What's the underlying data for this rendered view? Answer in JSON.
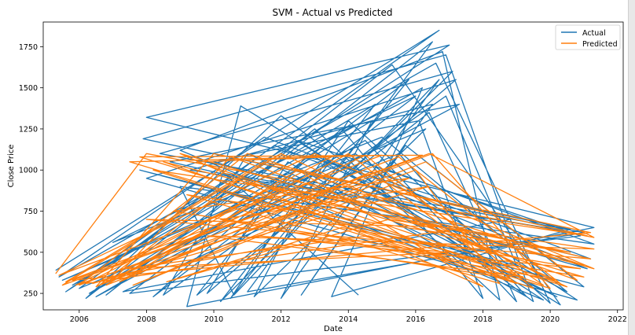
{
  "chart_data": {
    "type": "line",
    "title": "SVM - Actual vs Predicted",
    "xlabel": "Date",
    "ylabel": "Close Price",
    "xlim": [
      2004.93,
      2022.17
    ],
    "ylim": [
      150,
      1900
    ],
    "xticks": [
      "2006",
      "2008",
      "2010",
      "2012",
      "2014",
      "2016",
      "2018",
      "2020",
      "2022"
    ],
    "yticks": [
      "250",
      "500",
      "750",
      "1000",
      "1250",
      "1500",
      "1750"
    ],
    "grid": false,
    "legend_position": "top-right",
    "series": [
      {
        "name": "Actual",
        "color": "#1f77b4",
        "points": [
          [
            2005.3,
            390
          ],
          [
            2016.7,
            1850
          ],
          [
            2005.6,
            260
          ],
          [
            2017.0,
            1760
          ],
          [
            2008.0,
            1320
          ],
          [
            2021.3,
            650
          ],
          [
            2009.2,
            170
          ],
          [
            2010.8,
            1390
          ],
          [
            2020.3,
            180
          ],
          [
            2015.3,
            1640
          ],
          [
            2006.2,
            220
          ],
          [
            2012.0,
            1330
          ],
          [
            2019.5,
            200
          ],
          [
            2016.9,
            1700
          ],
          [
            2007.9,
            1190
          ],
          [
            2020.6,
            640
          ],
          [
            2013.5,
            230
          ],
          [
            2016.2,
            1500
          ],
          [
            2005.8,
            300
          ],
          [
            2014.8,
            1400
          ],
          [
            2010.2,
            200
          ],
          [
            2017.1,
            1600
          ],
          [
            2008.4,
            1100
          ],
          [
            2021.0,
            620
          ],
          [
            2011.0,
            260
          ],
          [
            2016.5,
            1780
          ],
          [
            2006.8,
            240
          ],
          [
            2013.0,
            1250
          ],
          [
            2018.5,
            210
          ],
          [
            2016.8,
            1720
          ],
          [
            2009.0,
            1120
          ],
          [
            2019.8,
            210
          ],
          [
            2012.5,
            1180
          ],
          [
            2020.9,
            600
          ],
          [
            2007.5,
            250
          ],
          [
            2015.8,
            1550
          ],
          [
            2010.5,
            220
          ],
          [
            2014.0,
            1300
          ],
          [
            2020.0,
            190
          ],
          [
            2016.6,
            1650
          ],
          [
            2005.4,
            350
          ],
          [
            2011.5,
            1200
          ],
          [
            2021.2,
            460
          ],
          [
            2008.7,
            1050
          ],
          [
            2017.3,
            1400
          ],
          [
            2006.5,
            230
          ],
          [
            2014.5,
            1180
          ],
          [
            2019.0,
            200
          ],
          [
            2016.4,
            1350
          ],
          [
            2009.5,
            240
          ],
          [
            2012.8,
            1100
          ],
          [
            2020.5,
            260
          ],
          [
            2015.0,
            1200
          ],
          [
            2007.0,
            560
          ],
          [
            2016.0,
            1450
          ],
          [
            2008.2,
            230
          ],
          [
            2013.8,
            1250
          ],
          [
            2018.0,
            220
          ],
          [
            2016.1,
            1300
          ],
          [
            2010.0,
            1050
          ],
          [
            2021.1,
            400
          ],
          [
            2011.8,
            1150
          ],
          [
            2006.0,
            280
          ],
          [
            2015.5,
            1100
          ],
          [
            2019.3,
            230
          ],
          [
            2012.2,
            1050
          ],
          [
            2009.8,
            250
          ],
          [
            2017.2,
            1550
          ],
          [
            2008.0,
            950
          ],
          [
            2020.8,
            210
          ],
          [
            2014.2,
            1100
          ],
          [
            2005.5,
            330
          ],
          [
            2016.3,
            1250
          ],
          [
            2011.2,
            230
          ],
          [
            2013.3,
            1050
          ],
          [
            2018.8,
            700
          ],
          [
            2007.3,
            260
          ],
          [
            2015.2,
            1000
          ],
          [
            2021.3,
            550
          ],
          [
            2009.0,
            900
          ],
          [
            2010.6,
            240
          ],
          [
            2016.7,
            1550
          ],
          [
            2012.0,
            220
          ],
          [
            2014.7,
            1300
          ],
          [
            2006.3,
            250
          ],
          [
            2013.0,
            980
          ],
          [
            2020.2,
            230
          ],
          [
            2011.0,
            1100
          ],
          [
            2008.5,
            240
          ],
          [
            2016.9,
            1450
          ],
          [
            2019.0,
            420
          ],
          [
            2007.8,
            1000
          ],
          [
            2021.0,
            290
          ],
          [
            2015.7,
            1150
          ],
          [
            2012.6,
            240
          ],
          [
            2016.5,
            1400
          ],
          [
            2009.3,
            1000
          ],
          [
            2020.7,
            620
          ],
          [
            2010.3,
            980
          ],
          [
            2014.3,
            240
          ]
        ]
      },
      {
        "name": "Predicted",
        "color": "#ff7f0e",
        "points": [
          [
            2005.3,
            370
          ],
          [
            2008.0,
            1100
          ],
          [
            2021.3,
            590
          ],
          [
            2016.4,
            1100
          ],
          [
            2005.5,
            300
          ],
          [
            2012.0,
            1100
          ],
          [
            2020.5,
            290
          ],
          [
            2007.8,
            1080
          ],
          [
            2016.2,
            1090
          ],
          [
            2005.8,
            330
          ],
          [
            2021.2,
            620
          ],
          [
            2010.0,
            1100
          ],
          [
            2006.5,
            290
          ],
          [
            2014.5,
            1090
          ],
          [
            2019.5,
            280
          ],
          [
            2008.5,
            1050
          ],
          [
            2021.0,
            420
          ],
          [
            2011.0,
            1100
          ],
          [
            2006.0,
            300
          ],
          [
            2016.5,
            1100
          ],
          [
            2020.0,
            280
          ],
          [
            2007.5,
            1050
          ],
          [
            2015.0,
            1090
          ],
          [
            2005.4,
            360
          ],
          [
            2013.0,
            1100
          ],
          [
            2021.3,
            400
          ],
          [
            2009.0,
            1100
          ],
          [
            2018.0,
            290
          ],
          [
            2012.5,
            1000
          ],
          [
            2006.8,
            300
          ],
          [
            2016.3,
            1050
          ],
          [
            2020.8,
            330
          ],
          [
            2010.5,
            1080
          ],
          [
            2007.0,
            330
          ],
          [
            2014.0,
            1100
          ],
          [
            2019.0,
            310
          ],
          [
            2008.2,
            1000
          ],
          [
            2021.1,
            600
          ],
          [
            2011.5,
            1050
          ],
          [
            2005.6,
            320
          ],
          [
            2015.5,
            1080
          ],
          [
            2020.3,
            310
          ],
          [
            2009.5,
            1050
          ],
          [
            2013.5,
            1080
          ],
          [
            2006.2,
            310
          ],
          [
            2017.5,
            650
          ],
          [
            2008.0,
            700
          ],
          [
            2021.2,
            460
          ],
          [
            2012.0,
            900
          ],
          [
            2007.2,
            320
          ],
          [
            2014.8,
            1000
          ],
          [
            2019.8,
            300
          ],
          [
            2010.8,
            950
          ],
          [
            2006.6,
            300
          ],
          [
            2016.0,
            1000
          ],
          [
            2018.5,
            310
          ],
          [
            2009.2,
            850
          ],
          [
            2020.6,
            500
          ],
          [
            2013.2,
            800
          ],
          [
            2005.9,
            300
          ],
          [
            2011.8,
            900
          ],
          [
            2021.0,
            350
          ],
          [
            2008.8,
            750
          ],
          [
            2015.8,
            950
          ],
          [
            2007.6,
            300
          ],
          [
            2014.2,
            850
          ],
          [
            2020.2,
            330
          ],
          [
            2010.2,
            700
          ],
          [
            2016.4,
            900
          ],
          [
            2006.4,
            310
          ],
          [
            2012.8,
            750
          ],
          [
            2019.2,
            350
          ],
          [
            2009.8,
            600
          ],
          [
            2021.3,
            520
          ],
          [
            2015.2,
            700
          ],
          [
            2008.6,
            320
          ],
          [
            2013.8,
            650
          ],
          [
            2020.9,
            400
          ],
          [
            2011.3,
            600
          ],
          [
            2017.0,
            500
          ],
          [
            2007.4,
            400
          ],
          [
            2014.6,
            600
          ],
          [
            2018.8,
            340
          ],
          [
            2012.3,
            550
          ],
          [
            2006.9,
            350
          ]
        ]
      }
    ]
  }
}
